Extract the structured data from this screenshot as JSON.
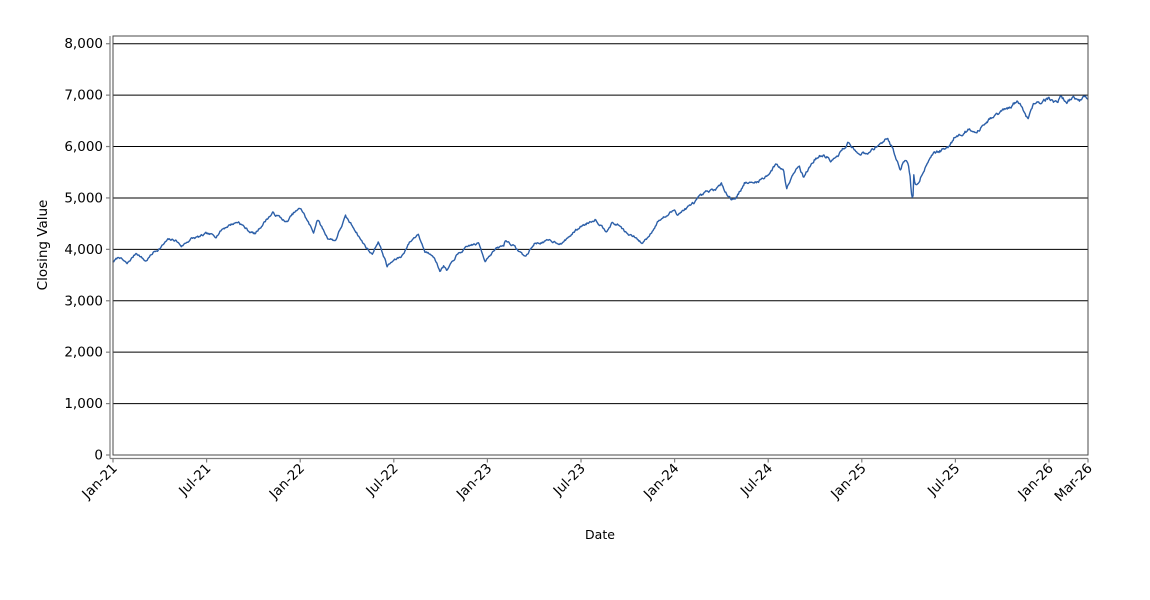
{
  "chart_data": {
    "type": "line",
    "title": "",
    "xlabel": "Date",
    "ylabel": "Closing Value",
    "legend": "none",
    "grid": "horizontal",
    "background": "#ffffff",
    "line_color": "#2c5fa8",
    "grid_color": "#000000",
    "axis_color": "#7f7f7f",
    "border_color": "#4a4a4a",
    "x_unit": "months since Jan-2021",
    "xlim": [
      0,
      62.5
    ],
    "ylim": [
      0,
      8150
    ],
    "y_ticks": [
      {
        "value": 0,
        "label": "0"
      },
      {
        "value": 1000,
        "label": "1,000"
      },
      {
        "value": 2000,
        "label": "2,000"
      },
      {
        "value": 3000,
        "label": "3,000"
      },
      {
        "value": 4000,
        "label": "4,000"
      },
      {
        "value": 5000,
        "label": "5,000"
      },
      {
        "value": 6000,
        "label": "6,000"
      },
      {
        "value": 7000,
        "label": "7,000"
      },
      {
        "value": 8000,
        "label": "8,000"
      }
    ],
    "x_ticks": [
      {
        "m": 0.0,
        "label": "Jan-21"
      },
      {
        "m": 6.0,
        "label": "Jul-21"
      },
      {
        "m": 12.0,
        "label": "Jan-22"
      },
      {
        "m": 18.0,
        "label": "Jul-22"
      },
      {
        "m": 24.0,
        "label": "Jan-23"
      },
      {
        "m": 30.0,
        "label": "Jul-23"
      },
      {
        "m": 36.0,
        "label": "Jan-24"
      },
      {
        "m": 42.0,
        "label": "Jul-24"
      },
      {
        "m": 48.0,
        "label": "Jan-25"
      },
      {
        "m": 54.0,
        "label": "Jul-25"
      },
      {
        "m": 60.0,
        "label": "Jan-26"
      },
      {
        "m": 62.5,
        "label": "Mar-26"
      }
    ],
    "series": [
      {
        "name": "Closing Value",
        "color": "#2c5fa8",
        "points": [
          [
            0,
            3756
          ],
          [
            0.4,
            3855
          ],
          [
            0.9,
            3714
          ],
          [
            1.5,
            3935
          ],
          [
            2.1,
            3768
          ],
          [
            2.6,
            3943
          ],
          [
            3.0,
            4020
          ],
          [
            3.5,
            4180
          ],
          [
            4.0,
            4181
          ],
          [
            4.4,
            4063
          ],
          [
            5.0,
            4204
          ],
          [
            5.6,
            4247
          ],
          [
            6.0,
            4298
          ],
          [
            6.6,
            4258
          ],
          [
            7.0,
            4395
          ],
          [
            7.5,
            4480
          ],
          [
            8.05,
            4537
          ],
          [
            8.7,
            4357
          ],
          [
            9.1,
            4300
          ],
          [
            9.9,
            4605
          ],
          [
            10.25,
            4702
          ],
          [
            10.85,
            4594
          ],
          [
            11.1,
            4513
          ],
          [
            11.6,
            4710
          ],
          [
            12.05,
            4797
          ],
          [
            12.85,
            4327
          ],
          [
            13.1,
            4589
          ],
          [
            13.75,
            4225
          ],
          [
            14.25,
            4170
          ],
          [
            14.9,
            4631
          ],
          [
            15.5,
            4392
          ],
          [
            16.0,
            4132
          ],
          [
            16.6,
            3900
          ],
          [
            17.0,
            4158
          ],
          [
            17.5,
            3750
          ],
          [
            17.55,
            3667
          ],
          [
            18.0,
            3785
          ],
          [
            18.5,
            3863
          ],
          [
            19.0,
            4130
          ],
          [
            19.55,
            4305
          ],
          [
            20.0,
            3955
          ],
          [
            20.5,
            3908
          ],
          [
            20.95,
            3586
          ],
          [
            21.2,
            3678
          ],
          [
            21.4,
            3577
          ],
          [
            22.0,
            3872
          ],
          [
            22.5,
            3992
          ],
          [
            22.9,
            4080
          ],
          [
            23.45,
            4110
          ],
          [
            23.85,
            3783
          ],
          [
            24.0,
            3840
          ],
          [
            24.5,
            3999
          ],
          [
            25.05,
            4077
          ],
          [
            25.15,
            4179
          ],
          [
            25.6,
            4090
          ],
          [
            26.0,
            3970
          ],
          [
            26.45,
            3856
          ],
          [
            27.0,
            4109
          ],
          [
            27.5,
            4138
          ],
          [
            28.0,
            4169
          ],
          [
            28.8,
            4115
          ],
          [
            29.0,
            4180
          ],
          [
            29.5,
            4320
          ],
          [
            30.0,
            4450
          ],
          [
            30.9,
            4589
          ],
          [
            31.6,
            4370
          ],
          [
            32.0,
            4508
          ],
          [
            32.5,
            4460
          ],
          [
            33.0,
            4288
          ],
          [
            33.5,
            4224
          ],
          [
            33.9,
            4117
          ],
          [
            34.3,
            4240
          ],
          [
            35.0,
            4568
          ],
          [
            35.5,
            4650
          ],
          [
            36.0,
            4770
          ],
          [
            36.2,
            4688
          ],
          [
            37.0,
            4846
          ],
          [
            37.5,
            4980
          ],
          [
            38.0,
            5096
          ],
          [
            38.5,
            5150
          ],
          [
            39.0,
            5254
          ],
          [
            39.65,
            4967
          ],
          [
            40.0,
            5036
          ],
          [
            40.5,
            5300
          ],
          [
            41.0,
            5278
          ],
          [
            41.5,
            5350
          ],
          [
            42.0,
            5460
          ],
          [
            42.55,
            5667
          ],
          [
            43.0,
            5522
          ],
          [
            43.18,
            5186
          ],
          [
            43.5,
            5450
          ],
          [
            44.0,
            5648
          ],
          [
            44.25,
            5408
          ],
          [
            45.0,
            5762
          ],
          [
            45.4,
            5815
          ],
          [
            45.8,
            5808
          ],
          [
            46.0,
            5705
          ],
          [
            46.4,
            5783
          ],
          [
            47.0,
            6032
          ],
          [
            47.2,
            6090
          ],
          [
            47.65,
            5867
          ],
          [
            48.0,
            5882
          ],
          [
            48.35,
            5827
          ],
          [
            49.0,
            6041
          ],
          [
            49.65,
            6144
          ],
          [
            50.0,
            5955
          ],
          [
            50.45,
            5572
          ],
          [
            50.8,
            5777
          ],
          [
            51.0,
            5612
          ],
          [
            51.1,
            5396
          ],
          [
            51.18,
            5074
          ],
          [
            51.28,
            4983
          ],
          [
            51.33,
            5456
          ],
          [
            51.4,
            5268
          ],
          [
            51.6,
            5283
          ],
          [
            52.0,
            5569
          ],
          [
            52.45,
            5844
          ],
          [
            53.0,
            5912
          ],
          [
            53.5,
            5970
          ],
          [
            54.0,
            6205
          ],
          [
            54.5,
            6280
          ],
          [
            55.0,
            6340
          ],
          [
            55.25,
            6238
          ],
          [
            56.0,
            6460
          ],
          [
            56.5,
            6584
          ],
          [
            57.0,
            6688
          ],
          [
            57.5,
            6740
          ],
          [
            57.95,
            6891
          ],
          [
            58.35,
            6729
          ],
          [
            58.65,
            6538
          ],
          [
            59.0,
            6849
          ],
          [
            59.5,
            6880
          ],
          [
            60.0,
            6940
          ],
          [
            60.35,
            6858
          ],
          [
            60.8,
            6965
          ],
          [
            61.2,
            6877
          ],
          [
            61.6,
            6958
          ],
          [
            62.0,
            6905
          ],
          [
            62.25,
            6950
          ],
          [
            62.5,
            6920
          ]
        ]
      }
    ],
    "render_hints": {
      "points_per_month": 21,
      "noise_seed": 7,
      "noise_frac": 0.0045,
      "noise_decay": 0.7
    }
  }
}
